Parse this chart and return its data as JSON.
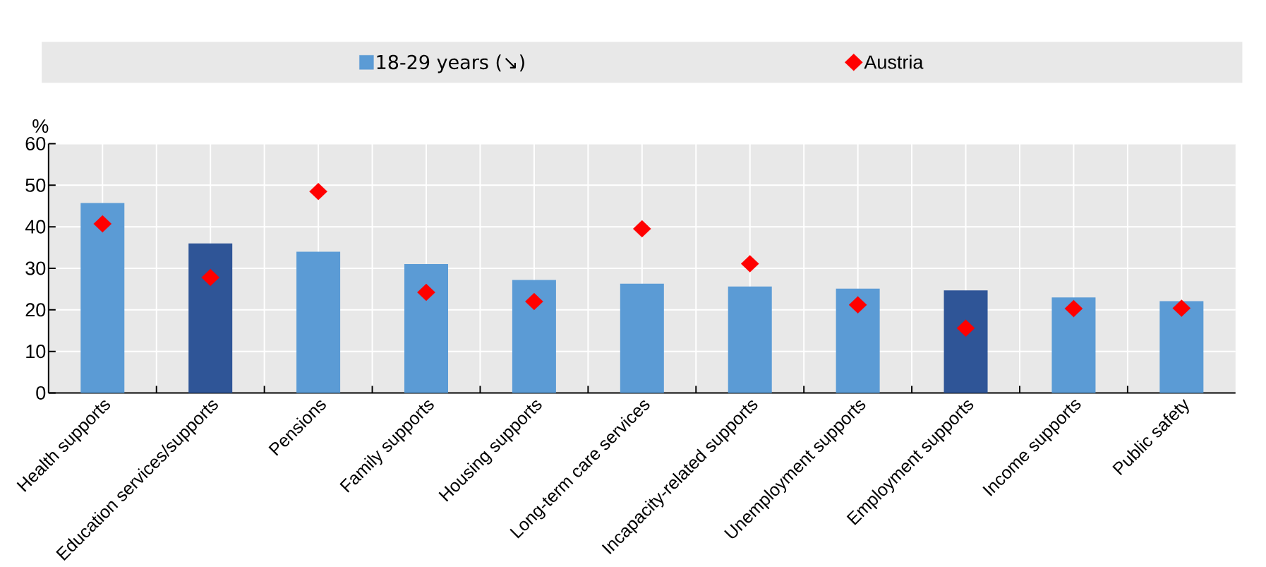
{
  "chart_data": {
    "type": "bar",
    "ylabel": "%",
    "categories": [
      "Health supports",
      "Education services/supports",
      "Pensions",
      "Family supports",
      "Housing supports",
      "Long-term care services",
      "Incapacity-related supports",
      "Unemployment supports",
      "Employment supports",
      "Income supports",
      "Public safety"
    ],
    "series": [
      {
        "name": "18-29 years (↘)",
        "type": "bar",
        "color": "#5b9bd5",
        "colors": [
          "#5b9bd5",
          "#2f5597",
          "#5b9bd5",
          "#5b9bd5",
          "#5b9bd5",
          "#5b9bd5",
          "#5b9bd5",
          "#5b9bd5",
          "#2f5597",
          "#5b9bd5",
          "#5b9bd5"
        ],
        "values": [
          45.7,
          36.0,
          34.0,
          31.0,
          27.2,
          26.3,
          25.6,
          25.1,
          24.7,
          23.0,
          22.1
        ]
      },
      {
        "name": "Austria",
        "type": "scatter",
        "color": "#ff0000",
        "marker": "diamond",
        "values": [
          40.7,
          27.8,
          48.5,
          24.2,
          22.0,
          39.5,
          31.1,
          21.2,
          15.6,
          20.3,
          20.4
        ]
      }
    ],
    "ylim": [
      0,
      60
    ],
    "yticks": [
      0,
      10,
      20,
      30,
      40,
      50,
      60
    ],
    "grid": true,
    "legend": "top"
  }
}
